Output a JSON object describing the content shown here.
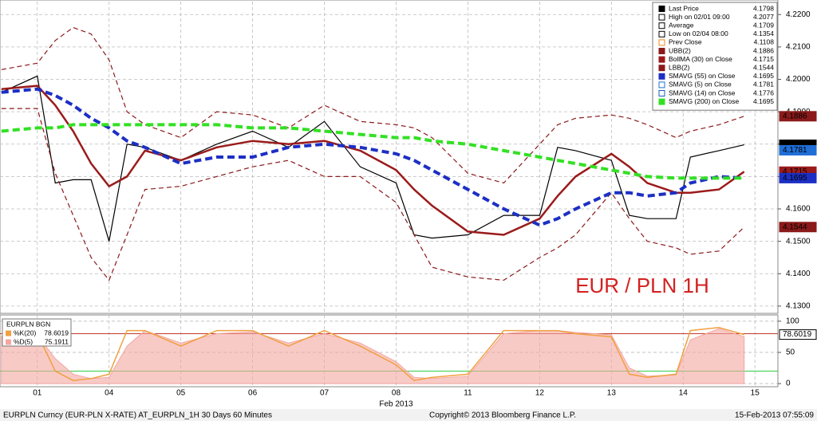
{
  "chart_data": [
    {
      "type": "line",
      "annotation": "EUR / PLN 1H",
      "xlim": [
        -0.52,
        10.32
      ],
      "xticks": [
        0,
        1,
        2,
        3,
        4,
        5,
        6,
        7,
        8,
        9,
        10
      ],
      "ylim": [
        4.128,
        4.224
      ],
      "yticks": [
        {
          "value": 4.13,
          "label": "4.1300"
        },
        {
          "value": 4.14,
          "label": "4.1400"
        },
        {
          "value": 4.15,
          "label": "4.1500"
        },
        {
          "value": 4.16,
          "label": "4.1600"
        },
        {
          "value": 4.17,
          "label": "4.1700"
        },
        {
          "value": 4.18,
          "label": "4.1800"
        },
        {
          "value": 4.19,
          "label": "4.1900"
        },
        {
          "value": 4.2,
          "label": "4.2000"
        },
        {
          "value": 4.21,
          "label": "4.2100"
        },
        {
          "value": 4.22,
          "label": "4.2200"
        }
      ],
      "grid": true,
      "x": [
        -0.5,
        0,
        0.25,
        0.5,
        0.75,
        1,
        1.25,
        1.5,
        2,
        2.5,
        3,
        3.5,
        4,
        4.5,
        5,
        5.25,
        5.5,
        6,
        6.5,
        7,
        7.25,
        7.5,
        8,
        8.25,
        8.5,
        8.9,
        9.1,
        9.5,
        9.85
      ],
      "series": [
        {
          "name": "Last Price",
          "last": 4.1798,
          "color": "#000000",
          "tag": true,
          "width": 1.2,
          "values": [
            4.196,
            4.201,
            4.168,
            4.169,
            4.169,
            4.15,
            4.18,
            4.179,
            4.175,
            4.18,
            4.184,
            4.179,
            4.187,
            4.173,
            4.168,
            4.152,
            4.151,
            4.152,
            4.158,
            4.158,
            4.179,
            4.178,
            4.175,
            4.158,
            4.157,
            4.157,
            4.176,
            4.178,
            4.1798
          ]
        },
        {
          "name": "High on 02/01 09:00",
          "last": 4.2077,
          "color": "#000000"
        },
        {
          "name": "Average",
          "last": 4.1709,
          "color": "#000000"
        },
        {
          "name": "Low on 02/04 08:00",
          "last": 4.1354,
          "color": "#000000"
        },
        {
          "name": "Prev Close",
          "last": 4.1108,
          "color": "#f08a1e"
        },
        {
          "name": "UBB(2)",
          "last": 4.1886,
          "color": "#8b1a1a",
          "tag": true,
          "width": 1.2,
          "dash": true,
          "values": [
            4.203,
            4.205,
            4.212,
            4.216,
            4.214,
            4.206,
            4.19,
            4.186,
            4.182,
            4.19,
            4.189,
            4.185,
            4.192,
            4.187,
            4.186,
            4.185,
            4.182,
            4.171,
            4.168,
            4.18,
            4.186,
            4.188,
            4.189,
            4.188,
            4.186,
            4.182,
            4.184,
            4.186,
            4.1886
          ]
        },
        {
          "name": "BollMA (30) on Close",
          "last": 4.1715,
          "color": "#9b1b1b",
          "tag": true,
          "width": 2.5,
          "values": [
            4.197,
            4.198,
            4.192,
            4.184,
            4.174,
            4.167,
            4.17,
            4.178,
            4.175,
            4.179,
            4.181,
            4.18,
            4.181,
            4.178,
            4.172,
            4.166,
            4.161,
            4.153,
            4.152,
            4.157,
            4.164,
            4.17,
            4.177,
            4.173,
            4.168,
            4.165,
            4.165,
            4.166,
            4.1715
          ]
        },
        {
          "name": "LBB(2)",
          "last": 4.1544,
          "color": "#8b1a1a",
          "tag": true,
          "width": 1.2,
          "dash": true,
          "values": [
            4.191,
            4.191,
            4.171,
            4.158,
            4.145,
            4.138,
            4.152,
            4.166,
            4.167,
            4.17,
            4.173,
            4.175,
            4.17,
            4.17,
            4.162,
            4.152,
            4.142,
            4.139,
            4.138,
            4.145,
            4.148,
            4.152,
            4.165,
            4.157,
            4.15,
            4.148,
            4.146,
            4.147,
            4.1544
          ]
        },
        {
          "name": "SMAVG (55) on Close",
          "last": 4.1695,
          "color": "#1c2fc4",
          "tag": true,
          "width": 4,
          "dash": true,
          "values": [
            4.196,
            4.197,
            4.195,
            4.192,
            4.188,
            4.185,
            4.181,
            4.179,
            4.174,
            4.176,
            4.176,
            4.179,
            4.18,
            4.179,
            4.177,
            4.175,
            4.172,
            4.166,
            4.16,
            4.155,
            4.157,
            4.16,
            4.165,
            4.165,
            4.164,
            4.165,
            4.168,
            4.17,
            4.1695
          ]
        },
        {
          "name": "SMAVG (5) on Close",
          "last": 4.1781,
          "color": "#1f6fd6",
          "tag": true
        },
        {
          "name": "SMAVG (14) on Close",
          "last": 4.1776,
          "color": "#1a5fb4"
        },
        {
          "name": "SMAVG (200) on Close",
          "last": 4.1695,
          "color": "#33e024",
          "width": 4,
          "dash": true,
          "values": [
            4.184,
            4.185,
            4.185,
            4.186,
            4.186,
            4.186,
            4.186,
            4.186,
            4.186,
            4.186,
            4.185,
            4.185,
            4.184,
            4.183,
            4.182,
            4.182,
            4.181,
            4.18,
            4.178,
            4.176,
            4.175,
            4.174,
            4.172,
            4.171,
            4.17,
            4.1695,
            4.1695,
            4.1695,
            4.1695
          ]
        }
      ]
    },
    {
      "type": "line",
      "title": "EURPLN BGN",
      "xlim": [
        -0.52,
        10.32
      ],
      "xticks": [
        {
          "value": 0,
          "label": "01"
        },
        {
          "value": 1,
          "label": "04"
        },
        {
          "value": 2,
          "label": "05"
        },
        {
          "value": 3,
          "label": "06"
        },
        {
          "value": 4,
          "label": "07"
        },
        {
          "value": 5,
          "label": "08"
        },
        {
          "value": 6,
          "label": "11"
        },
        {
          "value": 7,
          "label": "12"
        },
        {
          "value": 8,
          "label": "13"
        },
        {
          "value": 9,
          "label": "14"
        },
        {
          "value": 10,
          "label": "15"
        }
      ],
      "xlabel": "Feb 2013",
      "ylim": [
        -5,
        110
      ],
      "yticks": [
        0,
        50,
        100
      ],
      "hlines": [
        {
          "value": 80,
          "color": "#c0392b"
        },
        {
          "value": 20,
          "color": "#2ecc40"
        }
      ],
      "x": [
        -0.5,
        0,
        0.25,
        0.5,
        0.75,
        1,
        1.25,
        1.5,
        2,
        2.5,
        3,
        3.5,
        4,
        4.5,
        5,
        5.25,
        5.5,
        6,
        6.5,
        7,
        7.25,
        7.5,
        8,
        8.25,
        8.5,
        8.9,
        9.1,
        9.5,
        9.85
      ],
      "series": [
        {
          "name": "%K(20)",
          "last": 78.6019,
          "value_label": "78.6019",
          "color": "#f0a040",
          "tag": true,
          "values": [
            75,
            80,
            20,
            5,
            8,
            15,
            85,
            85,
            60,
            85,
            85,
            60,
            85,
            60,
            30,
            5,
            10,
            15,
            85,
            85,
            85,
            80,
            75,
            15,
            10,
            15,
            85,
            90,
            78.6019
          ]
        },
        {
          "name": "%D(5)",
          "last": 75.1911,
          "color": "#f4a6a0",
          "area": true,
          "values": [
            75,
            78,
            40,
            15,
            8,
            10,
            60,
            85,
            65,
            80,
            83,
            65,
            80,
            65,
            35,
            10,
            8,
            12,
            80,
            85,
            85,
            82,
            78,
            25,
            12,
            14,
            70,
            88,
            75.1911
          ]
        }
      ]
    }
  ],
  "footer": {
    "left": "EURPLN Curncy (EUR-PLN X-RATE) AT_EURPLN_1H 30 Days 60 Minutes",
    "center": "Copyright© 2013 Bloomberg Finance L.P.",
    "right": "15-Feb-2013 07:55:09"
  }
}
